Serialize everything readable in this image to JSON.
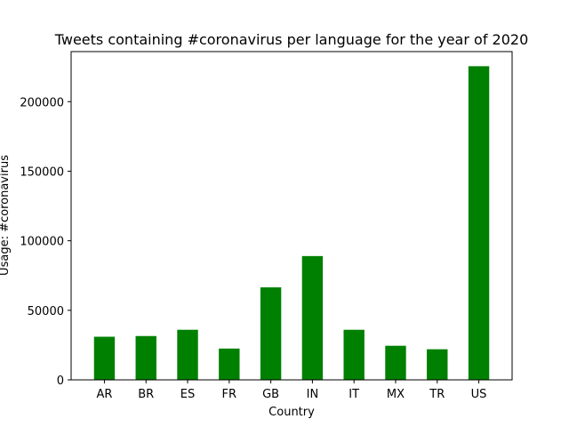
{
  "chart_data": {
    "type": "bar",
    "title": "Tweets containing #coronavirus per language for the year of 2020",
    "xlabel": "Country",
    "ylabel": "Usage: #coronavirus",
    "categories": [
      "AR",
      "BR",
      "ES",
      "FR",
      "GB",
      "IN",
      "IT",
      "MX",
      "TR",
      "US"
    ],
    "values": [
      31000,
      31500,
      36000,
      22500,
      66500,
      89000,
      36000,
      24500,
      22000,
      225500
    ],
    "ylim": [
      0,
      236000
    ],
    "yticks": [
      0,
      50000,
      100000,
      150000,
      200000
    ],
    "bar_color": "#008000",
    "grid": false,
    "legend": "none"
  }
}
